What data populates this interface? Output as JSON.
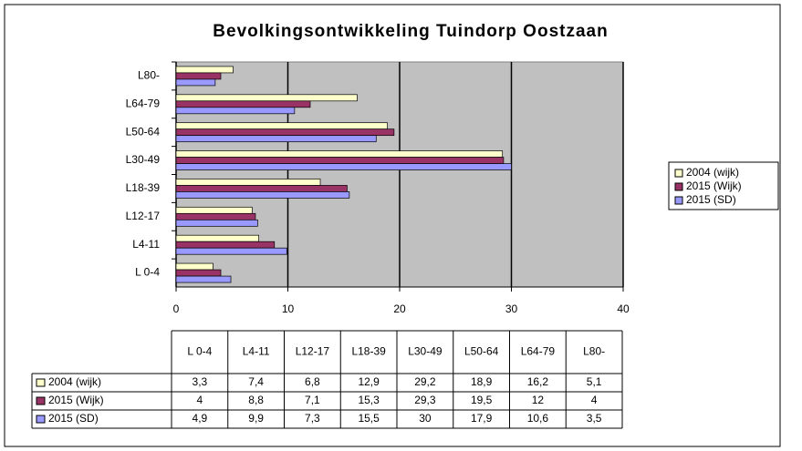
{
  "chart_data": {
    "type": "bar",
    "orientation": "horizontal",
    "title": "Bevolkingsontwikkeling Tuindorp Oostzaan",
    "categories": [
      "L 0-4",
      "L4-11",
      "L12-17",
      "L18-39",
      "L30-49",
      "L50-64",
      "L64-79",
      "L80-"
    ],
    "series": [
      {
        "name": "2004 (wijk)",
        "color": "#ffffcc",
        "values": [
          3.3,
          7.4,
          6.8,
          12.9,
          29.2,
          18.9,
          16.2,
          5.1
        ],
        "value_labels": [
          "3,3",
          "7,4",
          "6,8",
          "12,9",
          "29,2",
          "18,9",
          "16,2",
          "5,1"
        ]
      },
      {
        "name": "2015 (Wijk)",
        "color": "#993366",
        "values": [
          4,
          8.8,
          7.1,
          15.3,
          29.3,
          19.5,
          12,
          4
        ],
        "value_labels": [
          "4",
          "8,8",
          "7,1",
          "15,3",
          "29,3",
          "19,5",
          "12",
          "4"
        ]
      },
      {
        "name": "2015 (SD)",
        "color": "#9999ff",
        "values": [
          4.9,
          9.9,
          7.3,
          15.5,
          30,
          17.9,
          10.6,
          3.5
        ],
        "value_labels": [
          "4,9",
          "9,9",
          "7,3",
          "15,5",
          "30",
          "17,9",
          "10,6",
          "3,5"
        ]
      }
    ],
    "xlim": [
      0,
      40
    ],
    "xticks": [
      0,
      10,
      20,
      30,
      40
    ],
    "grid": true,
    "legend": "right",
    "data_table": true
  }
}
